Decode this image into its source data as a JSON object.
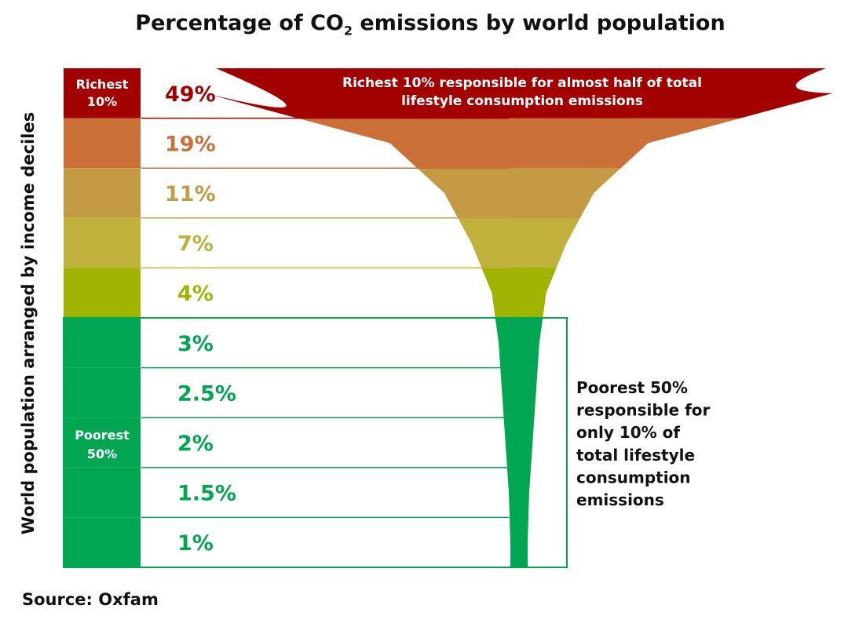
{
  "title": {
    "prefix": "Percentage of CO",
    "subscript": "2",
    "suffix": " emissions by world population"
  },
  "ylabel": "World population arranged by income deciles",
  "source": "Source: Oxfam",
  "richest_label": [
    "Richest",
    "10%"
  ],
  "poorest_label": [
    "Poorest",
    "50%"
  ],
  "richest_note": [
    "Richest 10% responsible for almost half of total",
    "lifestyle consumption emissions"
  ],
  "poorest_note": [
    "Poorest 50%",
    "responsible for",
    "only 10% of",
    "total lifestyle",
    "consumption",
    "emissions"
  ],
  "colors": {
    "decile_fills": [
      "#a30000",
      "#cb7038",
      "#c49a44",
      "#bfb13c",
      "#9eb400",
      "#00a651",
      "#00a651",
      "#00a651",
      "#00a651",
      "#00a651"
    ],
    "decile_text": [
      "#a30000",
      "#cb7038",
      "#c49a44",
      "#bfb13c",
      "#9eb400",
      "#00a651",
      "#00a651",
      "#00a651",
      "#00a651",
      "#00a651"
    ]
  },
  "chart_data": {
    "type": "bar",
    "title": "Percentage of CO2 emissions by world population",
    "xlabel": "",
    "ylabel": "World population arranged by income deciles",
    "categories": [
      "Richest 10%",
      "",
      "",
      "",
      "",
      "",
      "",
      "",
      "",
      ""
    ],
    "values": [
      49,
      19,
      11,
      7,
      4,
      3,
      2.5,
      2,
      1.5,
      1
    ],
    "value_labels": [
      "49%",
      "19%",
      "11%",
      "7%",
      "4%",
      "3%",
      "2.5%",
      "2%",
      "1.5%",
      "1%"
    ],
    "unit": "%"
  }
}
